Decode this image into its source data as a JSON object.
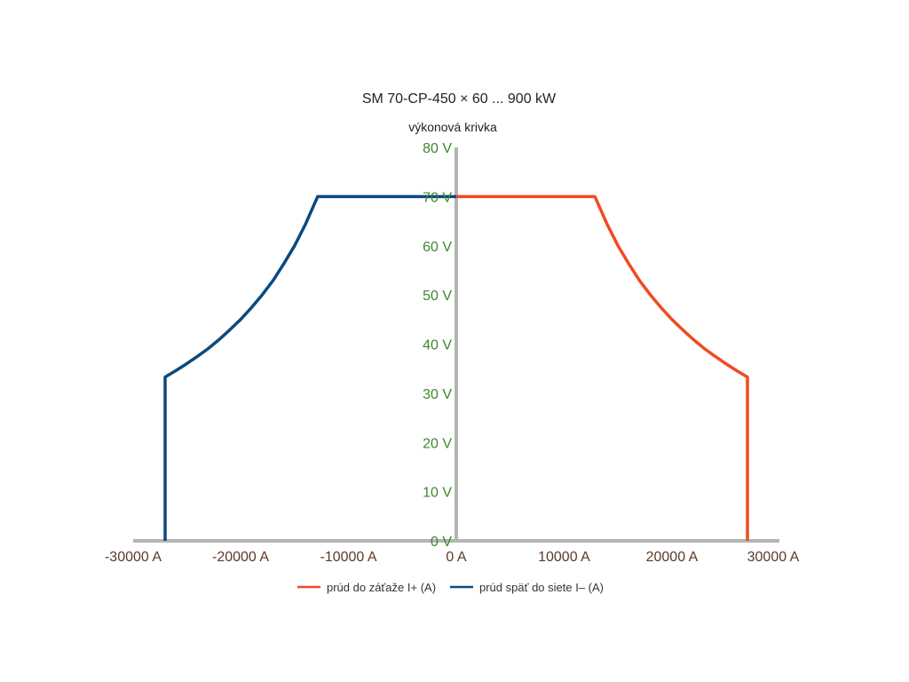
{
  "chart_data": {
    "type": "line",
    "title": "SM 70-CP-450 × 60 ... 900 kW",
    "ylabel": "výkonová krivka",
    "xlim": [
      -30000,
      30000
    ],
    "ylim": [
      0,
      80
    ],
    "x_ticks": [
      -30000,
      -20000,
      -10000,
      0,
      10000,
      20000,
      30000
    ],
    "x_tick_labels": [
      "-30000 A",
      "-20000 A",
      "-10000 A",
      "0 A",
      "10000 A",
      "20000 A",
      "30000 A"
    ],
    "y_ticks": [
      0,
      10,
      20,
      30,
      40,
      50,
      60,
      70,
      80
    ],
    "y_tick_labels": [
      "0 V",
      "10 V",
      "20 V",
      "30 V",
      "40 V",
      "50 V",
      "60 V",
      "70 V",
      "80 V"
    ],
    "grid": false,
    "legend_position": "bottom",
    "series": [
      {
        "name": "prúd do záťaže I+ (A)",
        "color": "#f04a23",
        "x": [
          0,
          12860,
          14000,
          15000,
          16000,
          17000,
          18000,
          19000,
          20000,
          21000,
          22000,
          23000,
          24000,
          25000,
          26000,
          27000,
          27000
        ],
        "y": [
          70,
          70,
          64.3,
          60,
          56.3,
          52.9,
          50,
          47.4,
          45,
          42.9,
          40.9,
          39.1,
          37.5,
          36,
          34.6,
          33.3,
          0
        ]
      },
      {
        "name": "prúd späť do siete I– (A)",
        "color": "#0a4a80",
        "x": [
          0,
          -12860,
          -14000,
          -15000,
          -16000,
          -17000,
          -18000,
          -19000,
          -20000,
          -21000,
          -22000,
          -23000,
          -24000,
          -25000,
          -26000,
          -27000,
          -27000
        ],
        "y": [
          70,
          70,
          64.3,
          60,
          56.3,
          52.9,
          50,
          47.4,
          45,
          42.9,
          40.9,
          39.1,
          37.5,
          36,
          34.6,
          33.3,
          0
        ]
      }
    ]
  },
  "colors": {
    "axis": "#b4b4b4",
    "y_tick_text": "#3a8a2a",
    "x_tick_text": "#5a3a28"
  }
}
